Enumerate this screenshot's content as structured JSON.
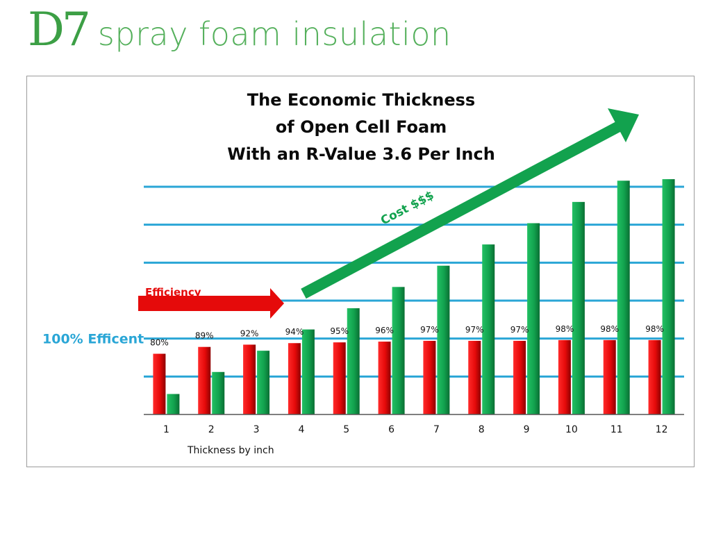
{
  "brand": {
    "mark": "D7",
    "tagline": "spray foam insulation"
  },
  "colors": {
    "brand": "#3c9f45",
    "efficiency_bar": "#e50a0a",
    "cost_bar": "#12a24e",
    "gridline": "#2aa6d6",
    "reference_label": "#2aa6d6"
  },
  "chart_data": {
    "type": "bar",
    "title": [
      "The Economic Thickness",
      "of Open Cell Foam",
      "With an R-Value 3.6 Per Inch"
    ],
    "xlabel": "Thickness by inch",
    "ylabel": "",
    "categories": [
      "1",
      "2",
      "3",
      "4",
      "5",
      "6",
      "7",
      "8",
      "9",
      "10",
      "11",
      "12"
    ],
    "series": [
      {
        "name": "Efficiency",
        "color": "#e50a0a",
        "values": [
          80,
          89,
          92,
          94,
          95,
          96,
          97,
          97,
          97,
          98,
          98,
          98
        ],
        "data_labels": [
          "80%",
          "89%",
          "92%",
          "94%",
          "95%",
          "96%",
          "97%",
          "97%",
          "97%",
          "98%",
          "98%",
          "98%"
        ]
      },
      {
        "name": "Cost $$$",
        "color": "#12a24e",
        "values": [
          27,
          56,
          84,
          112,
          140,
          168,
          196,
          224,
          252,
          280,
          308,
          310
        ]
      }
    ],
    "ylim": [
      0,
      300
    ],
    "gridlines": [
      50,
      100,
      150,
      200,
      250,
      300
    ],
    "grid": true,
    "y_tick_labels": false,
    "reference_line": {
      "value": 100,
      "label": "100% Efficent"
    },
    "annotations": [
      {
        "text": "Efficiency",
        "kind": "arrow",
        "direction": "right"
      },
      {
        "text": "Cost $$$",
        "kind": "arrow",
        "direction": "up-right"
      }
    ]
  }
}
